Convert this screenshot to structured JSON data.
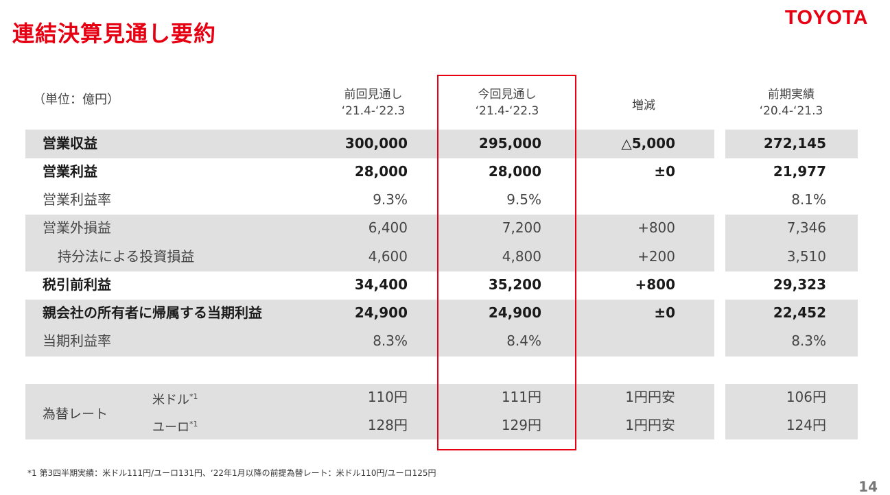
{
  "title": "連結決算見通し要約",
  "logo": "TOYOTA",
  "unit": "（単位：億円）",
  "headers": [
    {
      "line1": "前回見通し",
      "line2": "‘21.4-‘22.3"
    },
    {
      "line1": "今回見通し",
      "line2": "‘21.4-‘22.3"
    },
    {
      "line1": "増減",
      "line2": ""
    },
    {
      "line1": "前期実績",
      "line2": "‘20.4-‘21.3"
    }
  ],
  "rows": [
    {
      "label": "営業収益",
      "values": [
        "300,000",
        "295,000",
        "△5,000",
        "272,145"
      ]
    },
    {
      "label": "営業利益",
      "values": [
        "28,000",
        "28,000",
        "±0",
        "21,977"
      ]
    },
    {
      "label": "営業利益率",
      "values": [
        "9.3%",
        "9.5%",
        "",
        "8.1%"
      ]
    },
    {
      "label": "営業外損益",
      "values": [
        "6,400",
        "7,200",
        "+800",
        "7,346"
      ]
    },
    {
      "label": "持分法による投資損益",
      "values": [
        "4,600",
        "4,800",
        "+200",
        "3,510"
      ]
    },
    {
      "label": "税引前利益",
      "values": [
        "34,400",
        "35,200",
        "+800",
        "29,323"
      ]
    },
    {
      "label": "親会社の所有者に帰属する当期利益",
      "values": [
        "24,900",
        "24,900",
        "±0",
        "22,452"
      ]
    },
    {
      "label": "当期利益率",
      "values": [
        "8.3%",
        "8.4%",
        "",
        "8.3%"
      ]
    }
  ],
  "fx": {
    "label": "為替レート",
    "usd": {
      "label": "米ドル",
      "sup": "*1",
      "values": [
        "110円",
        "111円",
        "1円円安",
        "106円"
      ]
    },
    "eur": {
      "label": "ユーロ",
      "sup": "*1",
      "values": [
        "128円",
        "129円",
        "1円円安",
        "124円"
      ]
    }
  },
  "footnote": "*1 第3四半期実績：米ドル111円/ユーロ131円、‘22年1月以降の前提為替レート：米ドル110円/ユーロ125円",
  "page_number": "14",
  "colors": {
    "brand_red": "#e60012",
    "row_gray": "#e0e0e0"
  }
}
